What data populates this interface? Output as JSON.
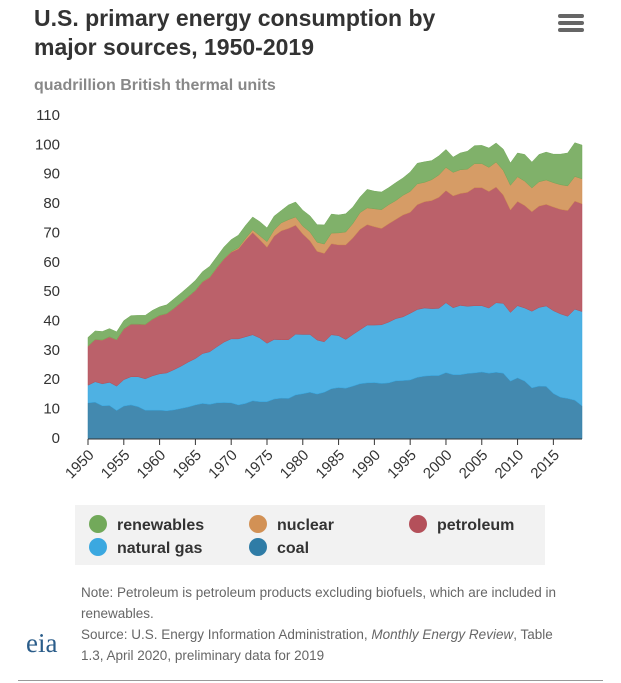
{
  "chart_data": {
    "type": "stacked-area",
    "title": "U.S. primary energy consumption by major sources, 1950-2019",
    "subtitle": "quadrillion British thermal units",
    "x": [
      1950,
      1951,
      1952,
      1953,
      1954,
      1955,
      1956,
      1957,
      1958,
      1959,
      1960,
      1961,
      1962,
      1963,
      1964,
      1965,
      1966,
      1967,
      1968,
      1969,
      1970,
      1971,
      1972,
      1973,
      1974,
      1975,
      1976,
      1977,
      1978,
      1979,
      1980,
      1981,
      1982,
      1983,
      1984,
      1985,
      1986,
      1987,
      1988,
      1989,
      1990,
      1991,
      1992,
      1993,
      1994,
      1995,
      1996,
      1997,
      1998,
      1999,
      2000,
      2001,
      2002,
      2003,
      2004,
      2005,
      2006,
      2007,
      2008,
      2009,
      2010,
      2011,
      2012,
      2013,
      2014,
      2015,
      2016,
      2017,
      2018,
      2019
    ],
    "xlim": [
      1950,
      2019
    ],
    "xticks": [
      1950,
      1955,
      1960,
      1965,
      1970,
      1975,
      1980,
      1985,
      1990,
      1995,
      2000,
      2005,
      2010,
      2015
    ],
    "ylim": [
      0,
      110
    ],
    "yticks": [
      0,
      10,
      20,
      30,
      40,
      50,
      60,
      70,
      80,
      90,
      100,
      110
    ],
    "grid": false,
    "series": [
      {
        "name": "renewables",
        "color": "#72a95a",
        "values": [
          3.0,
          2.9,
          2.9,
          2.8,
          2.7,
          2.8,
          2.9,
          3.0,
          3.1,
          3.0,
          2.9,
          3.0,
          3.2,
          3.2,
          3.3,
          3.4,
          3.4,
          3.7,
          3.7,
          4.0,
          4.1,
          4.3,
          4.4,
          4.4,
          4.8,
          4.7,
          4.7,
          4.2,
          5.0,
          5.1,
          5.4,
          5.5,
          6.0,
          6.5,
          6.5,
          6.1,
          6.2,
          5.6,
          5.3,
          6.3,
          6.0,
          6.0,
          5.8,
          6.1,
          5.9,
          6.6,
          7.0,
          7.0,
          6.5,
          6.5,
          6.1,
          5.2,
          5.7,
          6.1,
          6.1,
          6.2,
          6.6,
          6.5,
          7.2,
          7.6,
          8.1,
          9.1,
          8.8,
          9.3,
          9.5,
          9.7,
          10.4,
          11.2,
          11.5,
          11.5
        ]
      },
      {
        "name": "nuclear",
        "color": "#d29155",
        "values": [
          0,
          0,
          0,
          0,
          0,
          0,
          0,
          0,
          0,
          0,
          0,
          0,
          0,
          0,
          0,
          0,
          0.1,
          0.1,
          0.1,
          0.1,
          0.2,
          0.4,
          0.6,
          0.9,
          1.3,
          1.9,
          2.1,
          2.7,
          3.0,
          2.8,
          2.7,
          3.0,
          3.1,
          3.2,
          3.6,
          4.1,
          4.4,
          4.9,
          5.7,
          5.7,
          6.1,
          6.4,
          6.5,
          6.4,
          6.7,
          7.1,
          7.1,
          6.6,
          7.1,
          7.6,
          7.9,
          8.0,
          8.1,
          7.9,
          8.2,
          8.2,
          8.2,
          8.5,
          8.4,
          8.4,
          8.4,
          8.3,
          8.1,
          8.3,
          8.3,
          8.3,
          8.4,
          8.4,
          8.4,
          8.5
        ]
      },
      {
        "name": "petroleum",
        "color": "#b4505a",
        "values": [
          13.3,
          14.4,
          14.9,
          15.5,
          15.8,
          17.3,
          17.9,
          17.9,
          18.5,
          19.3,
          19.9,
          20.2,
          20.9,
          21.7,
          22.3,
          23.2,
          24.4,
          25.3,
          26.9,
          28.3,
          29.5,
          30.6,
          32.9,
          34.8,
          33.5,
          32.7,
          35.2,
          37.1,
          37.9,
          37.1,
          34.2,
          31.9,
          30.2,
          30.1,
          31.0,
          30.9,
          32.2,
          32.9,
          34.2,
          34.2,
          33.5,
          32.8,
          33.5,
          33.8,
          34.7,
          34.4,
          35.7,
          36.2,
          36.8,
          37.8,
          38.2,
          38.1,
          38.1,
          38.8,
          40.2,
          40.2,
          39.7,
          39.4,
          36.9,
          34.9,
          35.5,
          34.9,
          33.9,
          34.5,
          34.6,
          35.3,
          35.6,
          36.0,
          36.8,
          36.7
        ]
      },
      {
        "name": "natural gas",
        "color": "#3ba8e0",
        "values": [
          6.0,
          7.0,
          7.5,
          7.9,
          8.3,
          9.0,
          9.6,
          10.2,
          10.7,
          11.7,
          12.4,
          12.9,
          13.7,
          14.4,
          15.3,
          15.8,
          17.0,
          17.9,
          19.1,
          20.6,
          21.8,
          22.5,
          22.7,
          22.5,
          21.7,
          19.9,
          20.3,
          19.9,
          20.0,
          20.7,
          20.2,
          19.7,
          18.4,
          17.2,
          18.4,
          17.7,
          16.6,
          17.6,
          18.4,
          19.7,
          19.6,
          20.0,
          20.7,
          21.2,
          21.7,
          22.7,
          23.1,
          23.2,
          22.8,
          22.9,
          23.8,
          22.8,
          23.6,
          22.9,
          22.9,
          22.6,
          22.2,
          23.7,
          23.8,
          23.4,
          24.6,
          24.9,
          26.1,
          26.8,
          27.4,
          28.2,
          28.4,
          28.0,
          31.0,
          32.1
        ]
      },
      {
        "name": "coal",
        "color": "#2f7ca6",
        "values": [
          12.3,
          12.5,
          11.3,
          11.4,
          9.7,
          11.2,
          11.6,
          11.0,
          9.8,
          9.8,
          9.8,
          9.6,
          9.9,
          10.4,
          10.9,
          11.6,
          12.1,
          11.8,
          12.3,
          12.4,
          12.3,
          11.6,
          12.1,
          13.0,
          12.7,
          12.7,
          13.6,
          13.9,
          13.8,
          15.0,
          15.4,
          15.9,
          15.3,
          15.9,
          17.1,
          17.5,
          17.3,
          18.0,
          18.8,
          19.1,
          19.2,
          18.9,
          19.1,
          19.8,
          19.9,
          20.1,
          21.0,
          21.4,
          21.6,
          21.6,
          22.6,
          21.9,
          21.9,
          22.3,
          22.5,
          22.8,
          22.4,
          22.7,
          22.4,
          19.7,
          20.8,
          19.7,
          17.4,
          18.0,
          17.9,
          15.5,
          14.2,
          13.8,
          13.2,
          11.3
        ]
      }
    ],
    "note": "Note: Petroleum is petroleum products excluding biofuels, which are included in renewables.",
    "source": [
      "Source: U.S. Energy Information Administration, ",
      "Monthly Energy Review",
      ", Table 1.3, April 2020, preliminary data for 2019"
    ],
    "logo": "eia"
  }
}
